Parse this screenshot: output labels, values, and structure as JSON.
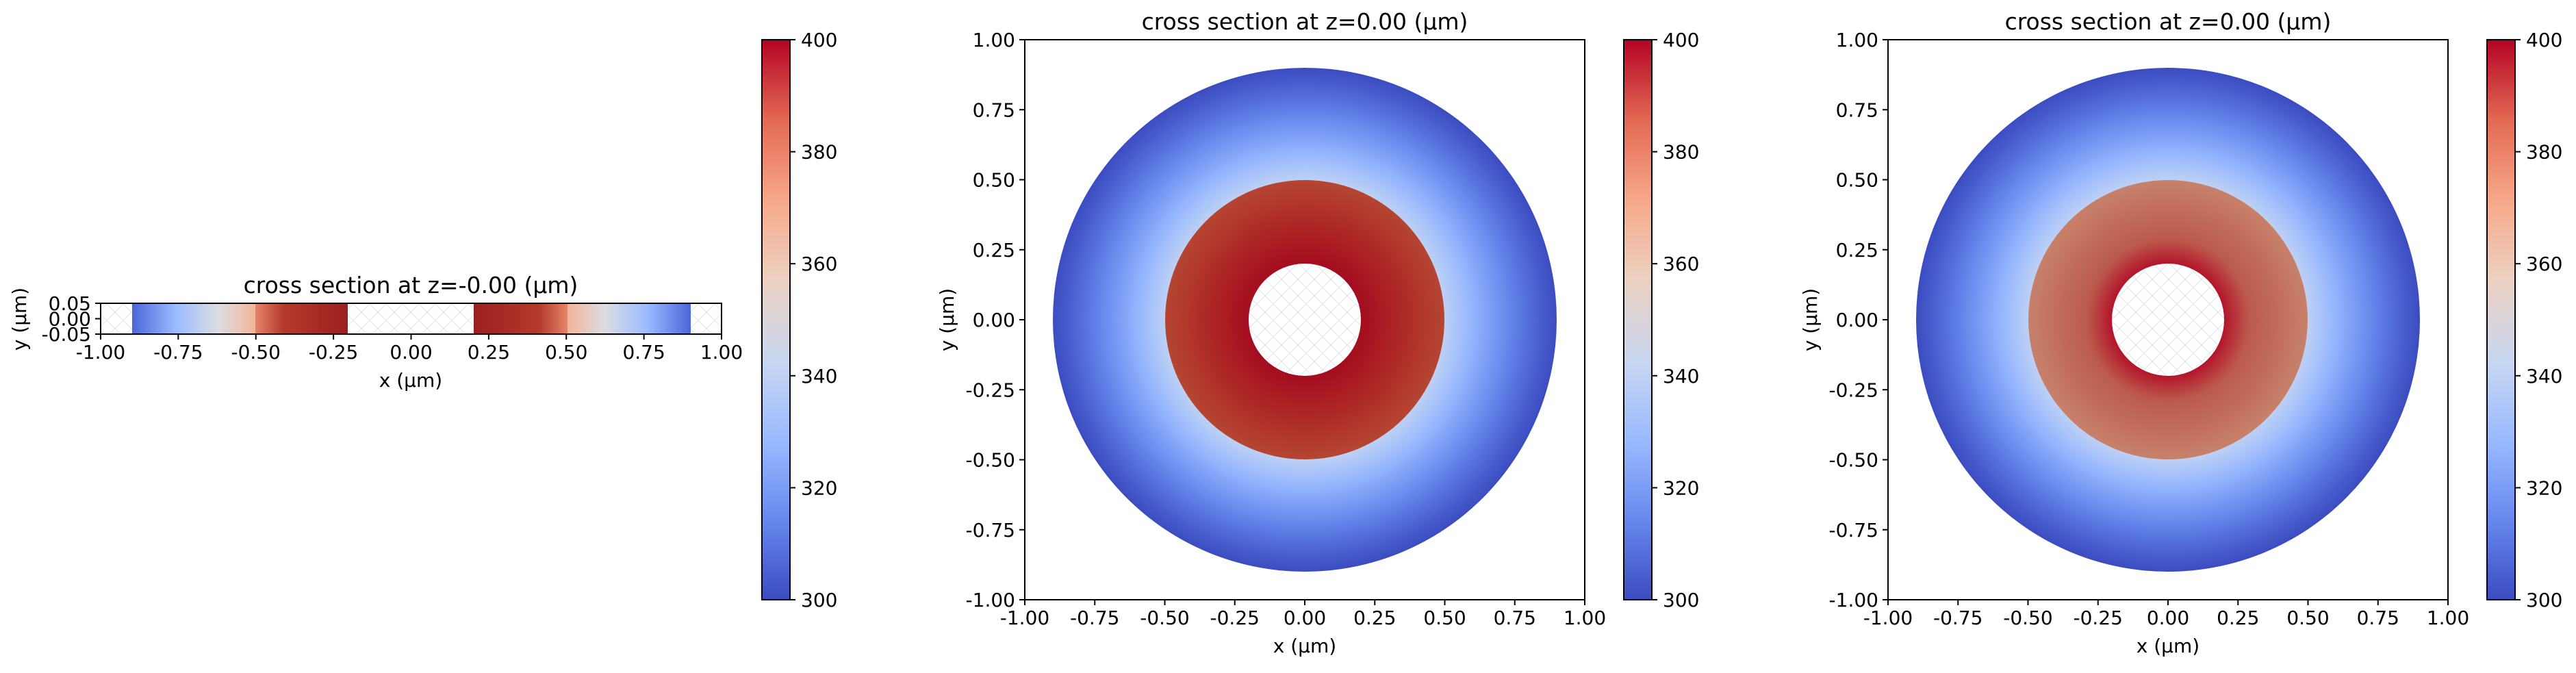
{
  "colormap": {
    "name": "coolwarm",
    "stops": [
      "#3b4cc0",
      "#6788ee",
      "#9abbff",
      "#c9d7f0",
      "#edd1c2",
      "#f7a889",
      "#e26952",
      "#b40426"
    ]
  },
  "colorbar_ticks": [
    "300",
    "320",
    "340",
    "360",
    "380",
    "400"
  ],
  "chart_data": [
    {
      "type": "heatmap",
      "title": "cross section at z=-0.00 (μm)",
      "xlabel": "x (μm)",
      "ylabel": "y (μm)",
      "xlim": [
        -1.0,
        1.0
      ],
      "ylim": [
        -0.05,
        0.05
      ],
      "xticks": [
        "-1.00",
        "-0.75",
        "-0.50",
        "-0.25",
        "0.00",
        "0.25",
        "0.50",
        "0.75",
        "1.00"
      ],
      "yticks": [
        "-0.05",
        "0.00",
        "0.05"
      ],
      "geometry": "annular slab: hollow |x| < 0.2, outer edge |x| = 0.9, inner layer 0.2 ≤ |x| ≤ 0.5",
      "temperature_profile": {
        "inner_radius": 0.2,
        "outer_radius": 0.9,
        "inner_value": 400,
        "outer_value": 300,
        "inner_layer_outer_radius": 0.5,
        "inner_layer_shading": "darkened"
      },
      "colorbar": {
        "vmin": 300,
        "vmax": 400,
        "ticks": [
          300,
          320,
          340,
          360,
          380,
          400
        ]
      }
    },
    {
      "type": "heatmap",
      "title": "cross section at z=0.00 (μm)",
      "xlabel": "x (μm)",
      "ylabel": "y (μm)",
      "xlim": [
        -1.0,
        1.0
      ],
      "ylim": [
        -1.0,
        1.0
      ],
      "xticks": [
        "-1.00",
        "-0.75",
        "-0.50",
        "-0.25",
        "0.00",
        "0.25",
        "0.50",
        "0.75",
        "1.00"
      ],
      "yticks": [
        "-1.00",
        "-0.75",
        "-0.50",
        "-0.25",
        "0.00",
        "0.25",
        "0.50",
        "0.75",
        "1.00"
      ],
      "geometry": "annulus: hole r < 0.2, outer r = 0.9, inner layer 0.2 ≤ r ≤ 0.5",
      "temperature_profile": {
        "inner_radius": 0.2,
        "outer_radius": 0.9,
        "inner_value": 400,
        "outer_value": 300,
        "inner_layer_outer_radius": 0.5,
        "inner_layer_shading": "darkened"
      },
      "colorbar": {
        "vmin": 300,
        "vmax": 400,
        "ticks": [
          300,
          320,
          340,
          360,
          380,
          400
        ]
      }
    },
    {
      "type": "heatmap",
      "title": "cross section at z=0.00 (μm)",
      "xlabel": "x (μm)",
      "ylabel": "y (μm)",
      "xlim": [
        -1.0,
        1.0
      ],
      "ylim": [
        -1.0,
        1.0
      ],
      "xticks": [
        "-1.00",
        "-0.75",
        "-0.50",
        "-0.25",
        "0.00",
        "0.25",
        "0.50",
        "0.75",
        "1.00"
      ],
      "yticks": [
        "-1.00",
        "-0.75",
        "-0.50",
        "-0.25",
        "0.00",
        "0.25",
        "0.50",
        "0.75",
        "1.00"
      ],
      "geometry": "annulus: hole r < 0.2, outer r = 0.9, inner layer 0.2 ≤ r ≤ 0.5",
      "temperature_profile": {
        "inner_radius": 0.2,
        "outer_radius": 0.9,
        "inner_value": 400,
        "outer_value": 300,
        "inner_layer_outer_radius": 0.5,
        "inner_layer_shading": "muted"
      },
      "colorbar": {
        "vmin": 300,
        "vmax": 400,
        "ticks": [
          300,
          320,
          340,
          360,
          380,
          400
        ]
      }
    }
  ]
}
